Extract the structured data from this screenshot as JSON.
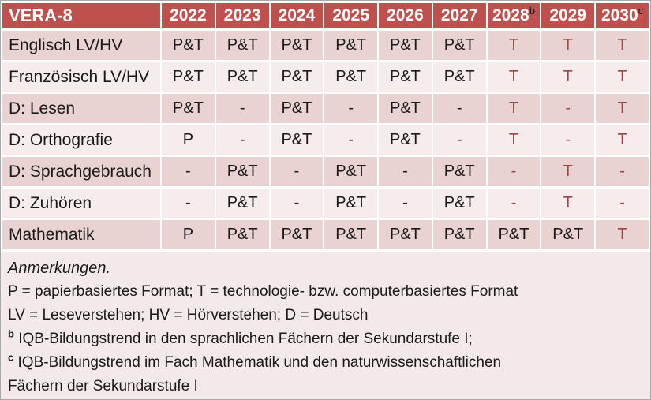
{
  "colors": {
    "header_bg": "#c0504d",
    "header_text": "#ffffff",
    "band_dark": "#e9d3d2",
    "band_light": "#f5eceb",
    "notes_bg": "#f3e9e8",
    "accent_red": "#9e4647",
    "text": "#1a1a1a",
    "grid": "#ffffff"
  },
  "table": {
    "title": "VERA-8",
    "header_years": [
      {
        "text": "2022",
        "sup": ""
      },
      {
        "text": "2023",
        "sup": ""
      },
      {
        "text": "2024",
        "sup": ""
      },
      {
        "text": "2025",
        "sup": ""
      },
      {
        "text": "2026",
        "sup": ""
      },
      {
        "text": "2027",
        "sup": ""
      },
      {
        "text": "2028",
        "sup": "b"
      },
      {
        "text": "2029",
        "sup": ""
      },
      {
        "text": "2030",
        "sup": "c"
      }
    ],
    "rows": [
      {
        "label": "Englisch LV/HV",
        "cells": [
          {
            "text": "P&T",
            "highlight": false
          },
          {
            "text": "P&T",
            "highlight": false
          },
          {
            "text": "P&T",
            "highlight": false
          },
          {
            "text": "P&T",
            "highlight": false
          },
          {
            "text": "P&T",
            "highlight": false
          },
          {
            "text": "P&T",
            "highlight": false
          },
          {
            "text": "T",
            "highlight": true
          },
          {
            "text": "T",
            "highlight": true
          },
          {
            "text": "T",
            "highlight": true
          }
        ]
      },
      {
        "label": "Französisch LV/HV",
        "cells": [
          {
            "text": "P&T",
            "highlight": false
          },
          {
            "text": "P&T",
            "highlight": false
          },
          {
            "text": "P&T",
            "highlight": false
          },
          {
            "text": "P&T",
            "highlight": false
          },
          {
            "text": "P&T",
            "highlight": false
          },
          {
            "text": "P&T",
            "highlight": false
          },
          {
            "text": "T",
            "highlight": true
          },
          {
            "text": "T",
            "highlight": true
          },
          {
            "text": "T",
            "highlight": true
          }
        ]
      },
      {
        "label": "D: Lesen",
        "cells": [
          {
            "text": "P&T",
            "highlight": false
          },
          {
            "text": "-",
            "highlight": false
          },
          {
            "text": "P&T",
            "highlight": false
          },
          {
            "text": "-",
            "highlight": false
          },
          {
            "text": "P&T",
            "highlight": false
          },
          {
            "text": "-",
            "highlight": false
          },
          {
            "text": "T",
            "highlight": true
          },
          {
            "text": "-",
            "highlight": true
          },
          {
            "text": "T",
            "highlight": true
          }
        ]
      },
      {
        "label": "D: Orthografie",
        "cells": [
          {
            "text": "P",
            "highlight": false
          },
          {
            "text": "-",
            "highlight": false
          },
          {
            "text": "P&T",
            "highlight": false
          },
          {
            "text": "-",
            "highlight": false
          },
          {
            "text": "P&T",
            "highlight": false
          },
          {
            "text": "-",
            "highlight": false
          },
          {
            "text": "T",
            "highlight": true
          },
          {
            "text": "-",
            "highlight": true
          },
          {
            "text": "T",
            "highlight": true
          }
        ]
      },
      {
        "label": "D: Sprachgebrauch",
        "cells": [
          {
            "text": "-",
            "highlight": false
          },
          {
            "text": "P&T",
            "highlight": false
          },
          {
            "text": "-",
            "highlight": false
          },
          {
            "text": "P&T",
            "highlight": false
          },
          {
            "text": "-",
            "highlight": false
          },
          {
            "text": "P&T",
            "highlight": false
          },
          {
            "text": "-",
            "highlight": true
          },
          {
            "text": "T",
            "highlight": true
          },
          {
            "text": "-",
            "highlight": true
          }
        ]
      },
      {
        "label": "D: Zuhören",
        "cells": [
          {
            "text": "-",
            "highlight": false
          },
          {
            "text": "P&T",
            "highlight": false
          },
          {
            "text": "-",
            "highlight": false
          },
          {
            "text": "P&T",
            "highlight": false
          },
          {
            "text": "-",
            "highlight": false
          },
          {
            "text": "P&T",
            "highlight": false
          },
          {
            "text": "-",
            "highlight": true
          },
          {
            "text": "T",
            "highlight": true
          },
          {
            "text": "-",
            "highlight": true
          }
        ]
      },
      {
        "label": "Mathematik",
        "cells": [
          {
            "text": "P",
            "highlight": false
          },
          {
            "text": "P&T",
            "highlight": false
          },
          {
            "text": "P&T",
            "highlight": false
          },
          {
            "text": "P&T",
            "highlight": false
          },
          {
            "text": "P&T",
            "highlight": false
          },
          {
            "text": "P&T",
            "highlight": false
          },
          {
            "text": "P&T",
            "highlight": false
          },
          {
            "text": "P&T",
            "highlight": false
          },
          {
            "text": "T",
            "highlight": true
          }
        ]
      }
    ]
  },
  "notes": {
    "heading": "Anmerkungen.",
    "lines": [
      {
        "sup": "",
        "text": "P = papierbasiertes Format; T = technologie- bzw. computerbasiertes Format"
      },
      {
        "sup": "",
        "text": "LV = Leseverstehen; HV = Hörverstehen; D = Deutsch"
      },
      {
        "sup": "b",
        "text": "IQB-Bildungstrend in den sprachlichen Fächern der Sekundarstufe I;"
      },
      {
        "sup": "c",
        "text": "IQB-Bildungstrend im Fach Mathematik und den naturwissenschaftlichen"
      },
      {
        "sup": "",
        "text": "Fächern der Sekundarstufe I"
      }
    ]
  }
}
